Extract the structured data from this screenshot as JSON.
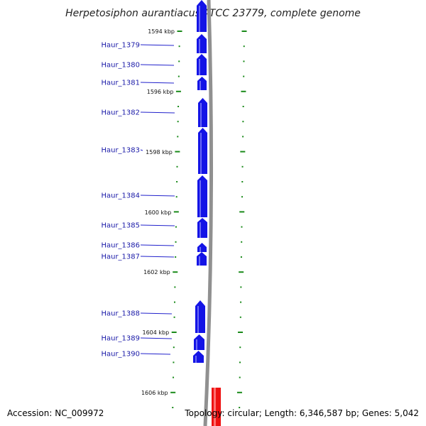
{
  "title": "Herpetosiphon aurantiacus ATCC 23779, complete genome",
  "accession_text": "Accession: NC_009972",
  "summary_text": "Topology: circular; Length: 6,346,587 bp; Genes: 5,042",
  "colors": {
    "gene_fill": "#1414e6",
    "gene_highlight": "#6a6af5",
    "label_text": "#1a1aa8",
    "label_line": "#2222cc",
    "tick_green": "#1a8a1a",
    "backbone_gray": "#909090",
    "feature_red": "#ee1111"
  },
  "scale": {
    "unit": "kbp",
    "ticks": [
      {
        "label": "1594 kbp"
      },
      {
        "label": "1596 kbp"
      },
      {
        "label": "1598 kbp"
      },
      {
        "label": "1600 kbp"
      },
      {
        "label": "1602 kbp"
      },
      {
        "label": "1604 kbp"
      },
      {
        "label": "1606 kbp"
      }
    ]
  },
  "genes": [
    {
      "label": "Haur_1379"
    },
    {
      "label": "Haur_1380"
    },
    {
      "label": "Haur_1381"
    },
    {
      "label": "Haur_1382"
    },
    {
      "label": "Haur_1383"
    },
    {
      "label": "Haur_1384"
    },
    {
      "label": "Haur_1385"
    },
    {
      "label": "Haur_1386"
    },
    {
      "label": "Haur_1387"
    },
    {
      "label": "Haur_1388"
    },
    {
      "label": "Haur_1389"
    },
    {
      "label": "Haur_1390"
    }
  ]
}
